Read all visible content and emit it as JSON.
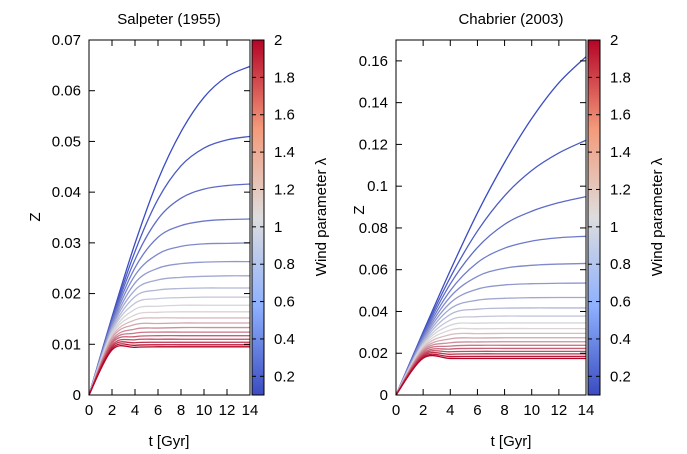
{
  "lambda_range": [
    0.1,
    2.0
  ],
  "colormap": {
    "low": "#3b4cc0",
    "mid": "#dddddd",
    "high": "#b40426"
  },
  "chart_data": [
    {
      "type": "line",
      "title": "Salpeter (1955)",
      "xlabel": "t [Gyr]",
      "ylabel": "Z",
      "cbar_label": "Wind parameter λ",
      "xlim": [
        0,
        14
      ],
      "ylim": [
        0,
        0.07
      ],
      "xticks": [
        "0",
        "2",
        "4",
        "6",
        "8",
        "10",
        "12",
        "14"
      ],
      "yticks": [
        "0",
        "0.01",
        "0.02",
        "0.03",
        "0.04",
        "0.05",
        "0.06",
        "0.07"
      ],
      "cbar_ticks": [
        "0.2",
        "0.4",
        "0.6",
        "0.8",
        "1",
        "1.2",
        "1.4",
        "1.6",
        "1.8",
        "2"
      ],
      "grid": false,
      "series_x": [
        0,
        2,
        4,
        6,
        8,
        10,
        12,
        14
      ],
      "series": [
        {
          "lambda": 0.1,
          "values": [
            0,
            0.0154,
            0.0299,
            0.0424,
            0.0519,
            0.0587,
            0.0628,
            0.0648
          ]
        },
        {
          "lambda": 0.2,
          "values": [
            0,
            0.015,
            0.0283,
            0.0386,
            0.0452,
            0.0487,
            0.0503,
            0.051
          ]
        },
        {
          "lambda": 0.3,
          "values": [
            0,
            0.0147,
            0.0267,
            0.0347,
            0.0388,
            0.0406,
            0.0413,
            0.0416
          ]
        },
        {
          "lambda": 0.4,
          "values": [
            0,
            0.0144,
            0.0251,
            0.0311,
            0.0334,
            0.0343,
            0.0346,
            0.0347
          ]
        },
        {
          "lambda": 0.5,
          "values": [
            0,
            0.014,
            0.0236,
            0.0278,
            0.0293,
            0.0298,
            0.0299,
            0.03
          ]
        },
        {
          "lambda": 0.6,
          "values": [
            0,
            0.0136,
            0.0221,
            0.025,
            0.0259,
            0.0262,
            0.0263,
            0.0263
          ]
        },
        {
          "lambda": 0.7,
          "values": [
            0,
            0.0133,
            0.0207,
            0.0227,
            0.0232,
            0.0234,
            0.0235,
            0.0235
          ]
        },
        {
          "lambda": 0.8,
          "values": [
            0,
            0.0129,
            0.0194,
            0.0207,
            0.021,
            0.0211,
            0.0211,
            0.0211
          ]
        },
        {
          "lambda": 0.9,
          "values": [
            0,
            0.0126,
            0.0181,
            0.019,
            0.0192,
            0.0193,
            0.0193,
            0.0193
          ]
        },
        {
          "lambda": 1.0,
          "values": [
            0,
            0.0122,
            0.0169,
            0.0175,
            0.0177,
            0.0177,
            0.0177,
            0.0177
          ]
        },
        {
          "lambda": 1.1,
          "values": [
            0,
            0.0119,
            0.0158,
            0.0163,
            0.0164,
            0.0164,
            0.0164,
            0.0164
          ]
        },
        {
          "lambda": 1.2,
          "values": [
            0,
            0.0115,
            0.0148,
            0.0152,
            0.0152,
            0.0152,
            0.0152,
            0.0152
          ]
        },
        {
          "lambda": 1.3,
          "values": [
            0,
            0.0112,
            0.0139,
            0.0141,
            0.0142,
            0.0142,
            0.0142,
            0.0142
          ]
        },
        {
          "lambda": 1.4,
          "values": [
            0,
            0.0108,
            0.013,
            0.0132,
            0.0133,
            0.0133,
            0.0133,
            0.0133
          ]
        },
        {
          "lambda": 1.5,
          "values": [
            0,
            0.0105,
            0.0122,
            0.0124,
            0.0124,
            0.0124,
            0.0124,
            0.0124
          ]
        },
        {
          "lambda": 1.6,
          "values": [
            0,
            0.0102,
            0.0115,
            0.0117,
            0.0117,
            0.0117,
            0.0117,
            0.0117
          ]
        },
        {
          "lambda": 1.7,
          "values": [
            0,
            0.0098,
            0.0109,
            0.011,
            0.011,
            0.011,
            0.011,
            0.011
          ]
        },
        {
          "lambda": 1.8,
          "values": [
            0,
            0.0095,
            0.0103,
            0.0104,
            0.0104,
            0.0104,
            0.0104,
            0.0104
          ]
        },
        {
          "lambda": 1.9,
          "values": [
            0,
            0.0092,
            0.0098,
            0.0099,
            0.0099,
            0.0099,
            0.0099,
            0.0099
          ]
        },
        {
          "lambda": 2.0,
          "values": [
            0,
            0.0089,
            0.0094,
            0.0095,
            0.0095,
            0.0095,
            0.0095,
            0.0095
          ]
        }
      ]
    },
    {
      "type": "line",
      "title": "Chabrier (2003)",
      "xlabel": "t [Gyr]",
      "ylabel": "Z",
      "cbar_label": "Wind parameter λ",
      "xlim": [
        0,
        14
      ],
      "ylim": [
        0,
        0.17
      ],
      "xticks": [
        "0",
        "2",
        "4",
        "6",
        "8",
        "10",
        "12",
        "14"
      ],
      "yticks": [
        "0",
        "0.02",
        "0.04",
        "0.06",
        "0.08",
        "0.1",
        "0.12",
        "0.14",
        "0.16"
      ],
      "cbar_ticks": [
        "0.2",
        "0.4",
        "0.6",
        "0.8",
        "1",
        "1.2",
        "1.4",
        "1.6",
        "1.8",
        "2"
      ],
      "grid": false,
      "series_x": [
        0,
        2,
        4,
        6,
        8,
        10,
        12,
        14
      ],
      "series": [
        {
          "lambda": 0.1,
          "values": [
            0,
            0.0302,
            0.0596,
            0.0872,
            0.1114,
            0.1324,
            0.1495,
            0.162
          ]
        },
        {
          "lambda": 0.2,
          "values": [
            0,
            0.0295,
            0.0563,
            0.0785,
            0.0954,
            0.1075,
            0.1159,
            0.122
          ]
        },
        {
          "lambda": 0.3,
          "values": [
            0,
            0.0288,
            0.0532,
            0.0706,
            0.0817,
            0.088,
            0.0921,
            0.095
          ]
        },
        {
          "lambda": 0.4,
          "values": [
            0,
            0.0281,
            0.05,
            0.0634,
            0.0703,
            0.0737,
            0.0753,
            0.076
          ]
        },
        {
          "lambda": 0.5,
          "values": [
            0,
            0.0273,
            0.047,
            0.0568,
            0.0607,
            0.0621,
            0.0627,
            0.063
          ]
        },
        {
          "lambda": 0.6,
          "values": [
            0,
            0.0266,
            0.0441,
            0.0507,
            0.0527,
            0.0533,
            0.0535,
            0.0536
          ]
        },
        {
          "lambda": 0.7,
          "values": [
            0,
            0.0259,
            0.0413,
            0.0454,
            0.0463,
            0.0466,
            0.0467,
            0.0467
          ]
        },
        {
          "lambda": 0.8,
          "values": [
            0,
            0.0252,
            0.0386,
            0.0411,
            0.0416,
            0.0417,
            0.0417,
            0.0417
          ]
        },
        {
          "lambda": 0.9,
          "values": [
            0,
            0.0245,
            0.0359,
            0.0375,
            0.0378,
            0.0378,
            0.0378,
            0.0378
          ]
        },
        {
          "lambda": 1.0,
          "values": [
            0,
            0.0239,
            0.0334,
            0.0344,
            0.0345,
            0.0345,
            0.0345,
            0.0345
          ]
        },
        {
          "lambda": 1.1,
          "values": [
            0,
            0.0232,
            0.0311,
            0.0317,
            0.0318,
            0.0318,
            0.0318,
            0.0318
          ]
        },
        {
          "lambda": 1.2,
          "values": [
            0,
            0.0225,
            0.0289,
            0.0294,
            0.0295,
            0.0295,
            0.0295,
            0.0295
          ]
        },
        {
          "lambda": 1.3,
          "values": [
            0,
            0.0218,
            0.0269,
            0.0273,
            0.0274,
            0.0274,
            0.0274,
            0.0274
          ]
        },
        {
          "lambda": 1.4,
          "values": [
            0,
            0.0212,
            0.025,
            0.0254,
            0.0255,
            0.0255,
            0.0255,
            0.0255
          ]
        },
        {
          "lambda": 1.5,
          "values": [
            0,
            0.0206,
            0.0234,
            0.0238,
            0.0238,
            0.0238,
            0.0238,
            0.0238
          ]
        },
        {
          "lambda": 1.6,
          "values": [
            0,
            0.0199,
            0.022,
            0.0223,
            0.0223,
            0.0223,
            0.0223,
            0.0223
          ]
        },
        {
          "lambda": 1.7,
          "values": [
            0,
            0.0193,
            0.0207,
            0.0209,
            0.0209,
            0.0209,
            0.0209,
            0.0209
          ]
        },
        {
          "lambda": 1.8,
          "values": [
            0,
            0.0187,
            0.0195,
            0.0197,
            0.0197,
            0.0197,
            0.0197,
            0.0197
          ]
        },
        {
          "lambda": 1.9,
          "values": [
            0,
            0.0181,
            0.0184,
            0.0185,
            0.0185,
            0.0185,
            0.0185,
            0.0185
          ]
        },
        {
          "lambda": 2.0,
          "values": [
            0,
            0.0176,
            0.0175,
            0.0175,
            0.0175,
            0.0175,
            0.0175,
            0.0175
          ]
        }
      ]
    }
  ]
}
